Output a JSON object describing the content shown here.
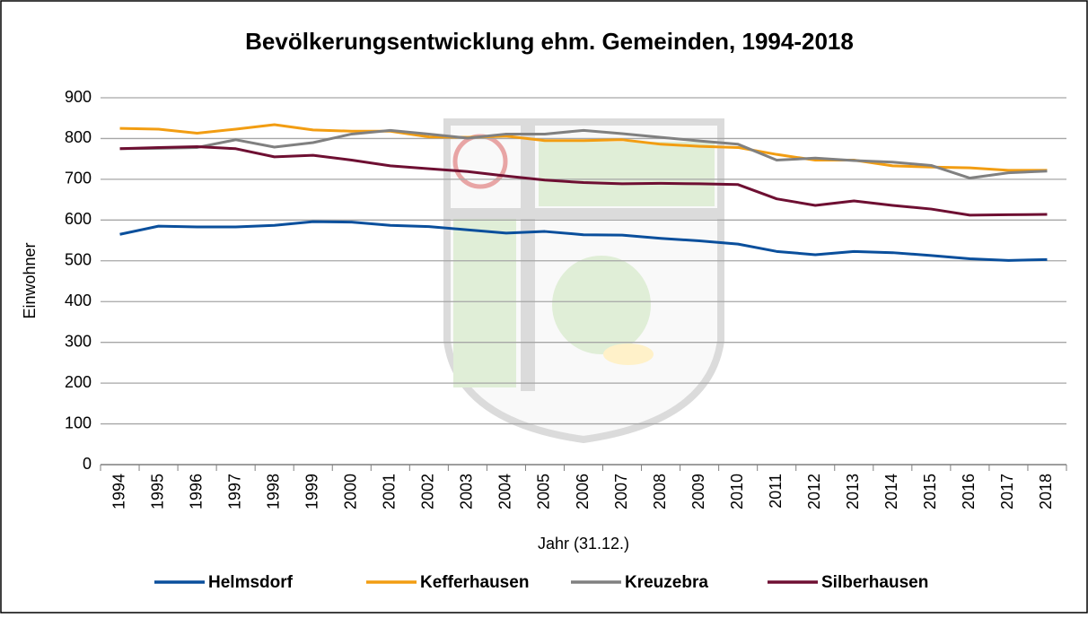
{
  "chart_data": {
    "type": "line",
    "title": "Bevölkerungsentwicklung ehm. Gemeinden, 1994-2018",
    "x_label": "Jahr (31.12.)",
    "y_label": "Einwohner",
    "categories": [
      "1994",
      "1995",
      "1996",
      "1997",
      "1998",
      "1999",
      "2000",
      "2001",
      "2002",
      "2003",
      "2004",
      "2005",
      "2006",
      "2007",
      "2008",
      "2009",
      "2010",
      "2011",
      "2012",
      "2013",
      "2014",
      "2015",
      "2016",
      "2017",
      "2018"
    ],
    "series": [
      {
        "name": "Helmsdorf",
        "color": "#0a4f9c",
        "values": [
          565,
          585,
          583,
          583,
          587,
          596,
          595,
          587,
          584,
          576,
          568,
          572,
          564,
          563,
          555,
          549,
          541,
          523,
          515,
          523,
          520,
          513,
          505,
          501,
          503
        ]
      },
      {
        "name": "Kefferhausen",
        "color": "#f29d12",
        "values": [
          825,
          823,
          813,
          823,
          834,
          821,
          818,
          818,
          804,
          803,
          806,
          795,
          795,
          797,
          786,
          781,
          778,
          761,
          747,
          747,
          733,
          730,
          728,
          722,
          722
        ]
      },
      {
        "name": "Kreuzebra",
        "color": "#808080",
        "values": [
          775,
          776,
          778,
          797,
          779,
          790,
          811,
          820,
          811,
          801,
          811,
          811,
          820,
          812,
          803,
          794,
          786,
          747,
          752,
          746,
          742,
          734,
          703,
          716,
          720
        ]
      },
      {
        "name": "Silberhausen",
        "color": "#6e0f32",
        "values": [
          775,
          778,
          780,
          775,
          755,
          759,
          747,
          733,
          726,
          719,
          708,
          698,
          692,
          689,
          690,
          689,
          687,
          652,
          636,
          647,
          636,
          627,
          612,
          613,
          614
        ]
      }
    ],
    "ylim": [
      0,
      900
    ],
    "yticks": [
      0,
      100,
      200,
      300,
      400,
      500,
      600,
      700,
      800,
      900
    ],
    "grid": true,
    "legend": "bottom"
  }
}
